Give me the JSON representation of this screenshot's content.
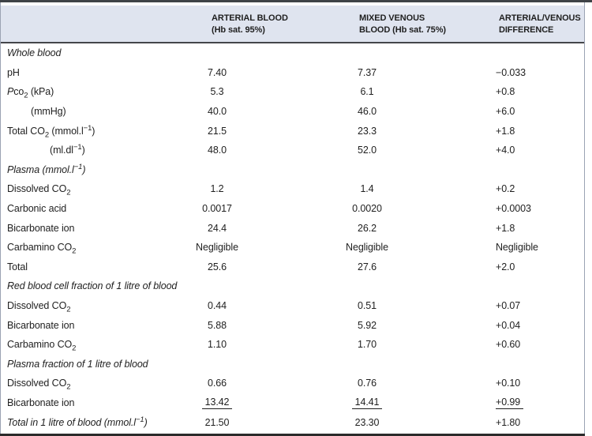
{
  "table": {
    "columns": [
      {
        "label_line1": "",
        "label_line2": ""
      },
      {
        "label_line1": "ARTERIAL BLOOD",
        "label_line2": "(Hb sat. 95%)"
      },
      {
        "label_line1": "MIXED VENOUS",
        "label_line2": "BLOOD (Hb sat. 75%)"
      },
      {
        "label_line1": "ARTERIAL/VENOUS",
        "label_line2": "DIFFERENCE"
      }
    ],
    "rows": [
      {
        "type": "section",
        "label_html": "Whole blood"
      },
      {
        "type": "data",
        "label_html": "pH",
        "arterial": "7.40",
        "venous": "7.37",
        "difference": "−0.033"
      },
      {
        "type": "data",
        "label_html": "<i>P</i>co<sub>2</sub> (kPa)",
        "arterial": "5.3",
        "venous": "6.1",
        "difference": "+0.8"
      },
      {
        "type": "data",
        "label_html": "(mmHg)",
        "indent": 30,
        "arterial": "40.0",
        "venous": "46.0",
        "difference": "+6.0"
      },
      {
        "type": "data",
        "label_html": "Total CO<sub>2</sub> (mmol.l<sup>−1</sup>)",
        "arterial": "21.5",
        "venous": "23.3",
        "difference": "+1.8"
      },
      {
        "type": "data",
        "label_html": "(ml.dl<sup>−1</sup>)",
        "indent": 54,
        "arterial": "48.0",
        "venous": "52.0",
        "difference": "+4.0"
      },
      {
        "type": "section",
        "label_html": "Plasma (mmol.l<sup>−1</sup>)"
      },
      {
        "type": "data",
        "label_html": "Dissolved CO<sub>2</sub>",
        "arterial": "1.2",
        "venous": "1.4",
        "difference": "+0.2"
      },
      {
        "type": "data",
        "label_html": "Carbonic acid",
        "arterial": "0.0017",
        "venous": "0.0020",
        "difference": "+0.0003"
      },
      {
        "type": "data",
        "label_html": "Bicarbonate ion",
        "arterial": "24.4",
        "venous": "26.2",
        "difference": "+1.8"
      },
      {
        "type": "data",
        "label_html": "Carbamino CO<sub>2</sub>",
        "arterial": "Negligible",
        "venous": "Negligible",
        "difference": "Negligible"
      },
      {
        "type": "data",
        "label_html": "Total",
        "arterial": "25.6",
        "venous": "27.6",
        "difference": "+2.0"
      },
      {
        "type": "section",
        "label_html": "Red blood cell fraction of 1 litre of blood"
      },
      {
        "type": "data",
        "label_html": "Dissolved CO<sub>2</sub>",
        "arterial": "0.44",
        "venous": "0.51",
        "difference": "+0.07"
      },
      {
        "type": "data",
        "label_html": "Bicarbonate ion",
        "arterial": "5.88",
        "venous": "5.92",
        "difference": "+0.04"
      },
      {
        "type": "data",
        "label_html": "Carbamino CO<sub>2</sub>",
        "arterial": "1.10",
        "venous": "1.70",
        "difference": "+0.60"
      },
      {
        "type": "section",
        "label_html": "Plasma fraction of 1 litre of blood"
      },
      {
        "type": "data",
        "label_html": "Dissolved CO<sub>2</sub>",
        "arterial": "0.66",
        "venous": "0.76",
        "difference": "+0.10"
      },
      {
        "type": "data",
        "label_html": "Bicarbonate ion",
        "arterial": "13.42",
        "venous": "14.41",
        "difference": "+0.99",
        "underline_values": true
      },
      {
        "type": "total",
        "label_html": "Total in 1 litre of blood (mmol.l<sup>−1</sup>)",
        "arterial": "21.50",
        "venous": "23.30",
        "difference": "+1.80"
      }
    ],
    "colors": {
      "header_bg": "#dfe4ef",
      "top_rule": "#3f4347",
      "bottom_rule": "#2b2b2b",
      "side_border": "#9ba3b3",
      "text": "#1f1f1f"
    }
  }
}
